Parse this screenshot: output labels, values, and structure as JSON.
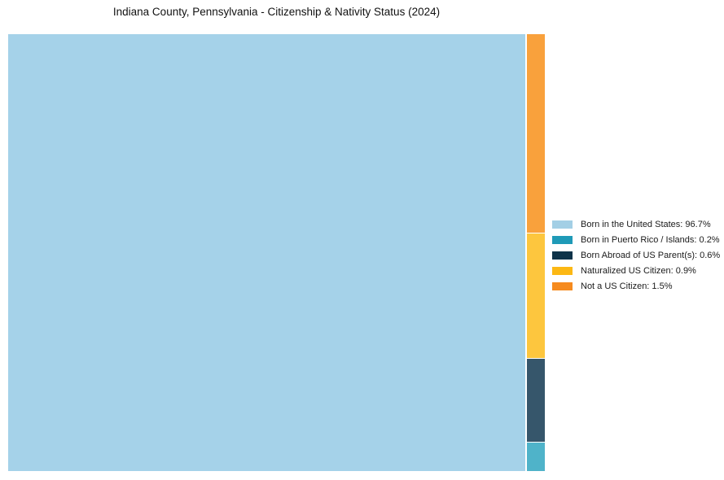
{
  "chart_data": {
    "type": "treemap",
    "title": "Indiana County, Pennsylvania - Citizenship & Nativity Status (2024)",
    "units": "%",
    "legend_position": "right",
    "items": [
      {
        "key": "born-in-us",
        "label": "Born in the United States",
        "value": 96.7,
        "legend_text": "Born in the United States: 96.7%",
        "legend_color": "#A3CFE5",
        "fill_color": "#A5D2E9"
      },
      {
        "key": "born-puerto-rico-islands",
        "label": "Born in Puerto Rico / Islands",
        "value": 0.2,
        "legend_text": "Born in Puerto Rico / Islands: 0.2%",
        "legend_color": "#1F9AB7",
        "fill_color": "#4FB3C9"
      },
      {
        "key": "born-abroad-us-parents",
        "label": "Born Abroad of US Parent(s)",
        "value": 0.6,
        "legend_text": "Born Abroad of US Parent(s): 0.6%",
        "legend_color": "#0E3349",
        "fill_color": "#36566B"
      },
      {
        "key": "naturalized-us-citizen",
        "label": "Naturalized US Citizen",
        "value": 0.9,
        "legend_text": "Naturalized US Citizen: 0.9%",
        "legend_color": "#FCB814",
        "fill_color": "#FDC63E"
      },
      {
        "key": "not-a-us-citizen",
        "label": "Not a US Citizen",
        "value": 1.5,
        "legend_text": "Not a US Citizen: 1.5%",
        "legend_color": "#F68B1F",
        "fill_color": "#F9A13C"
      }
    ]
  }
}
